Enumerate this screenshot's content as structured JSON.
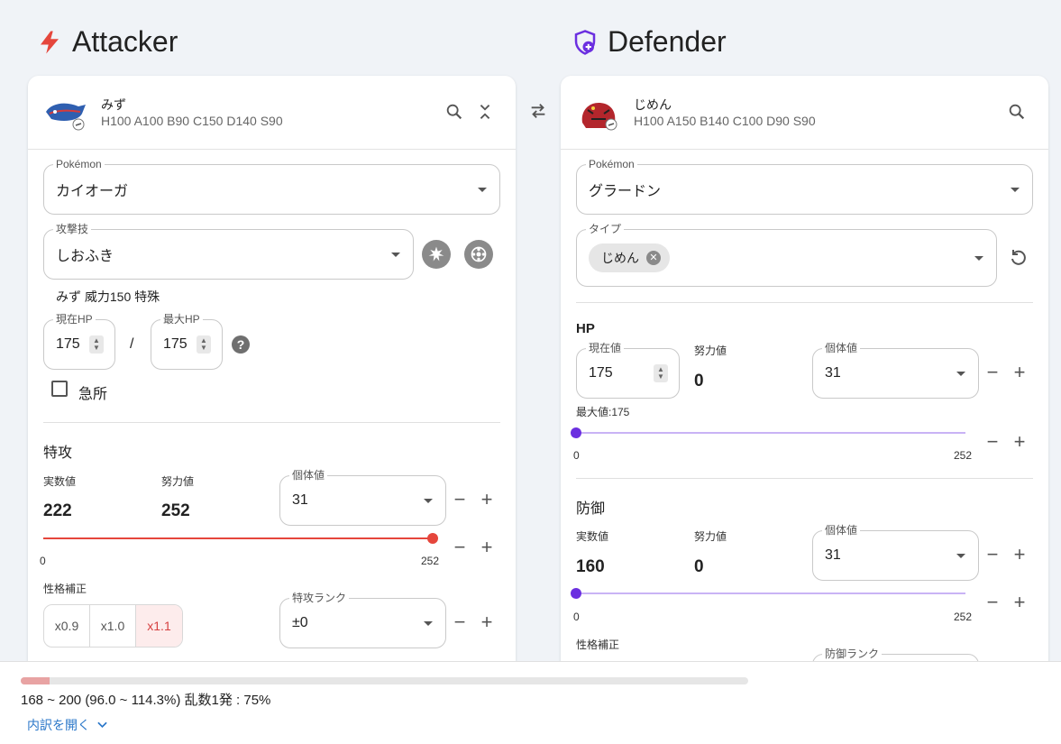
{
  "attacker": {
    "title": "Attacker",
    "header": {
      "name": "みず",
      "stats": "H100 A100 B90 C150 D140 S90"
    },
    "pokemon": {
      "label": "Pokémon",
      "value": "カイオーガ"
    },
    "move": {
      "label": "攻撃技",
      "value": "しおふき",
      "info": "みず 威力150 特殊"
    },
    "current_hp": {
      "label": "現在HP",
      "value": "175"
    },
    "hp_separator": "/",
    "max_hp": {
      "label": "最大HP",
      "value": "175"
    },
    "help_icon": "?",
    "critical_label": "急所",
    "stat": {
      "section": "特攻",
      "actual_label": "実数値",
      "actual_value": "222",
      "effort_label": "努力値",
      "effort_value": "252",
      "iv": {
        "label": "個体値",
        "value": "31"
      },
      "slider_min": "0",
      "slider_max": "252",
      "slider_value": 252
    },
    "nature": {
      "label": "性格補正",
      "options": [
        "x0.9",
        "x1.0",
        "x1.1"
      ],
      "selected": "x1.1"
    },
    "rank": {
      "label": "特攻ランク",
      "value": "±0"
    }
  },
  "defender": {
    "title": "Defender",
    "header": {
      "name": "じめん",
      "stats": "H100 A150 B140 C100 D90 S90"
    },
    "pokemon": {
      "label": "Pokémon",
      "value": "グラードン"
    },
    "type": {
      "label": "タイプ",
      "chips": [
        "じめん"
      ]
    },
    "hp": {
      "section": "HP",
      "current_label": "現在値",
      "current_value": "175",
      "effort_label": "努力値",
      "effort_value": "0",
      "iv": {
        "label": "個体値",
        "value": "31"
      },
      "max_label": "最大値:175",
      "slider_min": "0",
      "slider_max": "252",
      "slider_value": 0
    },
    "defense": {
      "section": "防御",
      "actual_label": "実数値",
      "actual_value": "160",
      "effort_label": "努力値",
      "effort_value": "0",
      "iv": {
        "label": "個体値",
        "value": "31"
      },
      "slider_min": "0",
      "slider_max": "252",
      "slider_value": 0
    },
    "nature_label": "性格補正",
    "rank_label": "防御ランク"
  },
  "controls": {
    "minus": "−",
    "plus": "+",
    "chip_remove": "✕"
  },
  "result": {
    "damage_text": "168 ~ 200 (96.0 ~ 114.3%) 乱数1発 : 75%",
    "progress_fraction": 0.04,
    "breakdown_label": "内訳を開く"
  },
  "colors": {
    "attacker_accent": "#e5463c",
    "defender_accent": "#6b2fe0",
    "link": "#2a77c9"
  },
  "icons": [
    "lightning-icon",
    "shield-plus-icon",
    "search-icon",
    "collapse-icon",
    "swap-icon",
    "physical-category-icon",
    "special-category-icon",
    "reset-icon",
    "chevron-down-icon",
    "link-icon"
  ]
}
